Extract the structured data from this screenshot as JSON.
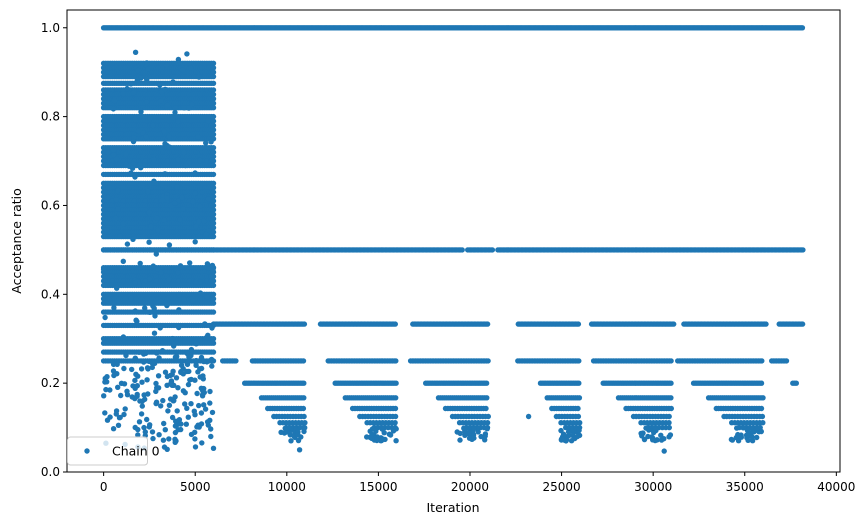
{
  "chart_data": {
    "type": "scatter",
    "xlabel": "Iteration",
    "ylabel": "Acceptance ratio",
    "xlim": [
      -2000,
      40200
    ],
    "ylim": [
      0.0,
      1.04
    ],
    "xticks": [
      0,
      5000,
      10000,
      15000,
      20000,
      25000,
      30000,
      35000,
      40000
    ],
    "xtick_labels": [
      "0",
      "5000",
      "10000",
      "15000",
      "20000",
      "25000",
      "30000",
      "35000",
      "40000"
    ],
    "yticks": [
      0.0,
      0.2,
      0.4,
      0.6,
      0.8,
      1.0
    ],
    "ytick_labels": [
      "0.0",
      "0.2",
      "0.4",
      "0.6",
      "0.8",
      "1.0"
    ],
    "grid": false,
    "legend": {
      "position": "lower-left",
      "entries": [
        "Chain 0"
      ]
    },
    "color": "#1f77b4",
    "series": [
      {
        "name": "Chain 0",
        "x_range": [
          0,
          38200
        ],
        "description_points": [
          {
            "x_from": 0,
            "x_to": 38200,
            "y": 1.0
          },
          {
            "x_from": 0,
            "x_to": 38200,
            "y": 0.5
          },
          {
            "x_from": 0,
            "x_to": 38200,
            "y": 0.333
          },
          {
            "x_from": 6500,
            "x_to": 38200,
            "y": 0.25
          },
          {
            "x_from": 7500,
            "x_to": 38000,
            "y": 0.2
          },
          {
            "x_from": 8000,
            "x_to": 37000,
            "y": 0.167
          },
          {
            "x_from": 0,
            "x_to": 6000,
            "y_from": 0.05,
            "y_to": 0.95
          }
        ]
      }
    ]
  }
}
